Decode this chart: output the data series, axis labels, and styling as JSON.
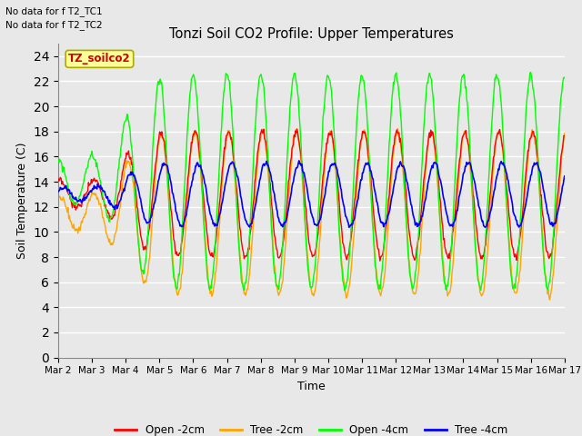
{
  "title": "Tonzi Soil CO2 Profile: Upper Temperatures",
  "xlabel": "Time",
  "ylabel": "Soil Temperature (C)",
  "ylim": [
    0,
    25
  ],
  "yticks": [
    0,
    2,
    4,
    6,
    8,
    10,
    12,
    14,
    16,
    18,
    20,
    22,
    24
  ],
  "xtick_labels": [
    "Mar 2",
    "Mar 3",
    "Mar 4",
    "Mar 5",
    "Mar 6",
    "Mar 7",
    "Mar 8",
    "Mar 9",
    "Mar 10",
    "Mar 11",
    "Mar 12",
    "Mar 13",
    "Mar 14",
    "Mar 15",
    "Mar 16",
    "Mar 17"
  ],
  "colors": {
    "open_2cm": "#FF0000",
    "tree_2cm": "#FFA500",
    "open_4cm": "#00FF00",
    "tree_4cm": "#0000FF"
  },
  "legend_box_label": "TZ_soilco2",
  "legend_box_color": "#FFFF99",
  "legend_box_edge": "#AAAA00",
  "no_data_text": [
    "No data for f T2_TC1",
    "No data for f T2_TC2"
  ],
  "background_color": "#E8E8E8",
  "figure_bg": "#E8E8E8",
  "grid_color": "#FFFFFF",
  "legend_entries": [
    "Open -2cm",
    "Tree -2cm",
    "Open -4cm",
    "Tree -4cm"
  ]
}
